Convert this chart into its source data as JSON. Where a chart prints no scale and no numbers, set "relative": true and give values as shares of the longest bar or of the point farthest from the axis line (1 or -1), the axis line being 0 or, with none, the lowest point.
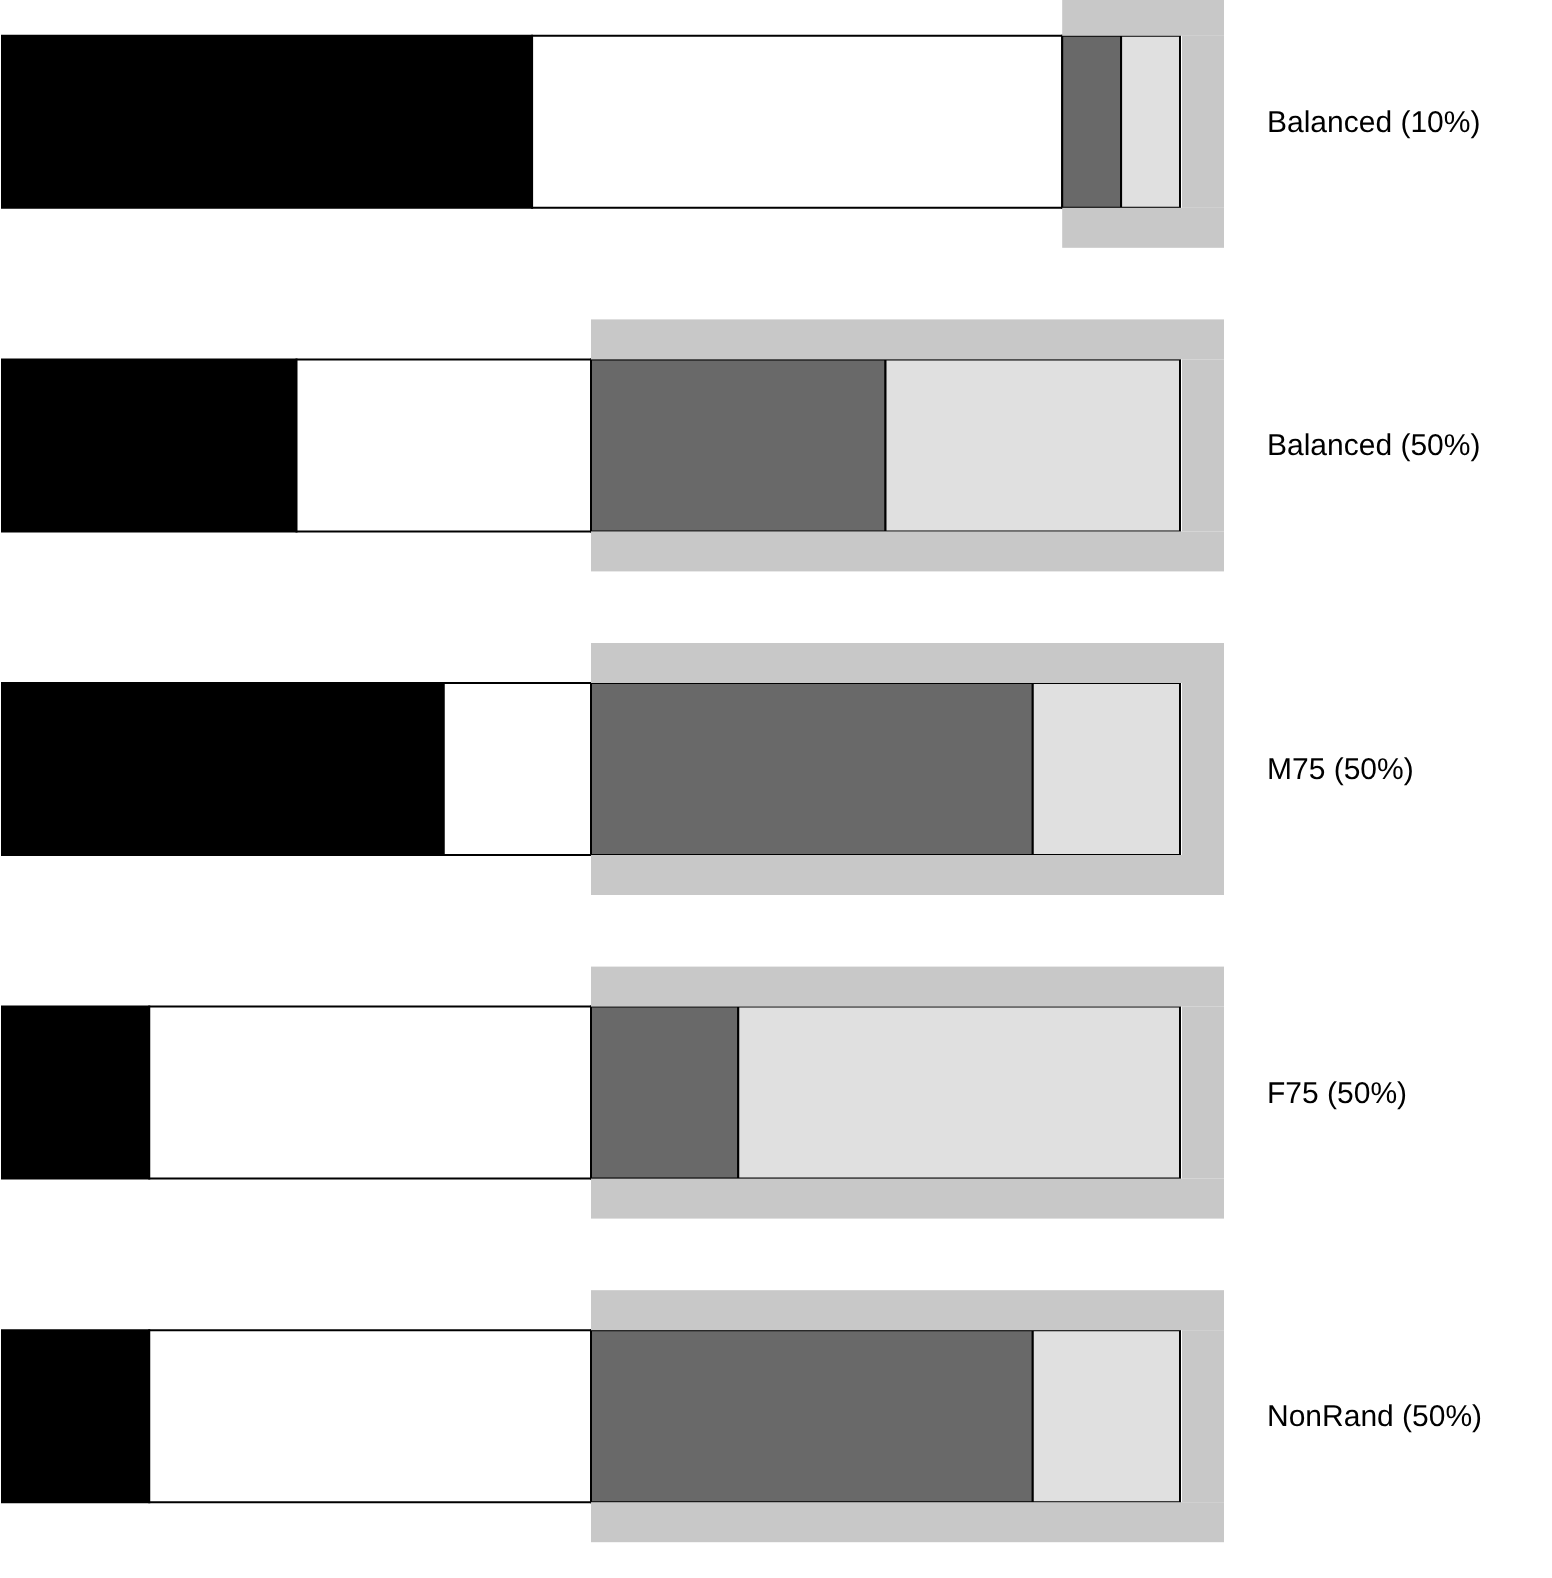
{
  "chart_data": {
    "type": "bar",
    "orientation": "horizontal",
    "stacked": true,
    "relative": true,
    "categories": [
      "Balanced (10%)",
      "Balanced (50%)",
      "M75 (50%)",
      "F75 (50%)",
      "NonRand (50%)"
    ],
    "series": [
      {
        "color": "#000000",
        "values": [
          0.45,
          0.25,
          0.375,
          0.125,
          0.125
        ]
      },
      {
        "color": "#ffffff",
        "values": [
          0.45,
          0.25,
          0.125,
          0.375,
          0.375
        ]
      },
      {
        "color": "#696969",
        "values": [
          0.05,
          0.25,
          0.375,
          0.125,
          0.375
        ]
      },
      {
        "color": "#e0e0e0",
        "values": [
          0.05,
          0.25,
          0.125,
          0.375,
          0.125
        ]
      }
    ]
  }
}
